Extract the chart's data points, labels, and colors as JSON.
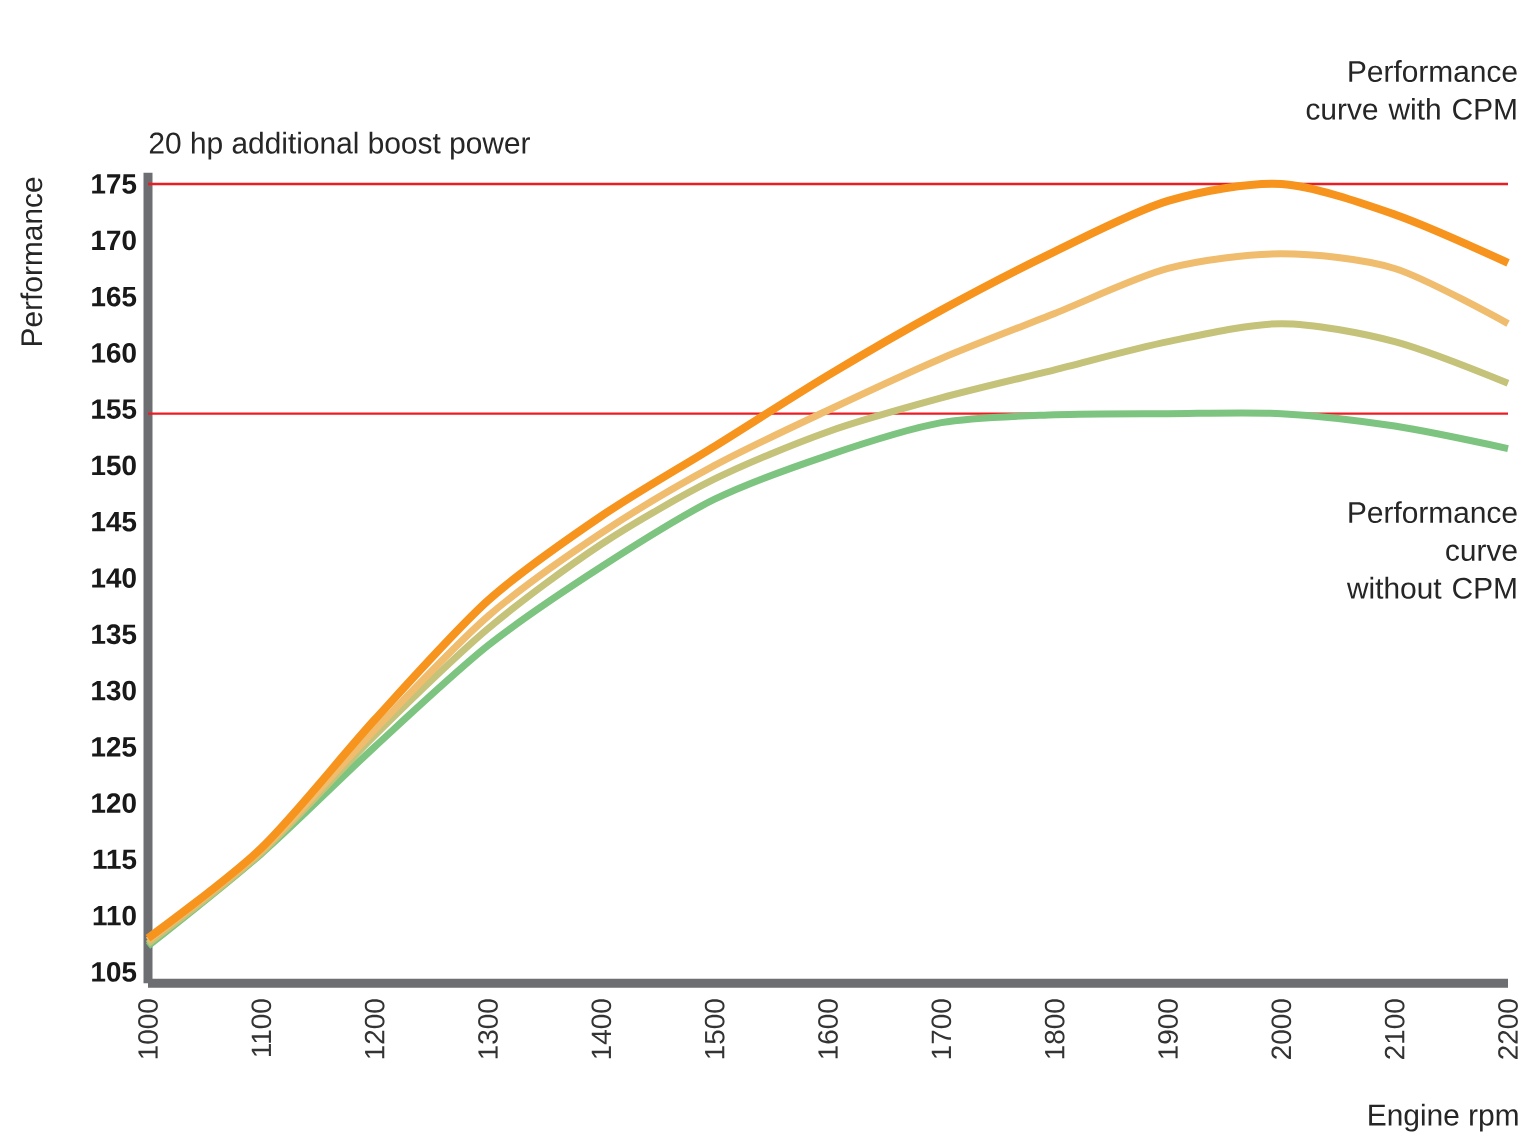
{
  "chart_data": {
    "type": "line",
    "xlabel": "Engine rpm",
    "ylabel": "Performance",
    "x": [
      1000,
      1100,
      1200,
      1300,
      1400,
      1500,
      1600,
      1700,
      1800,
      1900,
      2000,
      2100,
      2200
    ],
    "series": [
      {
        "color": "#7cc47f",
        "values": [
          107.3,
          115.5,
          125,
          134,
          141,
          147,
          150.9,
          153.8,
          154.5,
          154.6,
          154.6,
          153.5,
          151.5
        ]
      },
      {
        "color": "#c5c27a",
        "values": [
          107.5,
          115.6,
          126,
          135.5,
          143,
          148.8,
          153,
          156,
          158.5,
          161,
          162.6,
          161,
          157.3
        ]
      },
      {
        "color": "#f0bc6e",
        "values": [
          107.8,
          115.8,
          126.5,
          136.6,
          144,
          150,
          154.9,
          159.5,
          163.5,
          167.5,
          168.8,
          167.5,
          162.6
        ]
      },
      {
        "color": "#f7941d",
        "values": [
          108,
          116,
          127.4,
          138,
          145.5,
          151.7,
          158,
          163.8,
          169,
          173.5,
          175,
          172.3,
          168
        ]
      }
    ],
    "xlim": [
      1000,
      2200
    ],
    "xticks": [
      1000,
      1100,
      1200,
      1300,
      1400,
      1500,
      1600,
      1700,
      1800,
      1900,
      2000,
      2100,
      2200
    ],
    "ylim": [
      104,
      176
    ],
    "yticks": [
      105,
      110,
      115,
      120,
      125,
      130,
      135,
      140,
      145,
      150,
      155,
      160,
      165,
      170,
      175
    ],
    "ref_lines": [
      {
        "axis": "y",
        "value": 175,
        "color": "#ed1c24"
      },
      {
        "axis": "y",
        "value": 154.6,
        "color": "#ed1c24"
      }
    ],
    "annotations": [
      "20 hp additional boost power",
      "Performance curve with CPM",
      "Performance curve without CPM"
    ]
  }
}
